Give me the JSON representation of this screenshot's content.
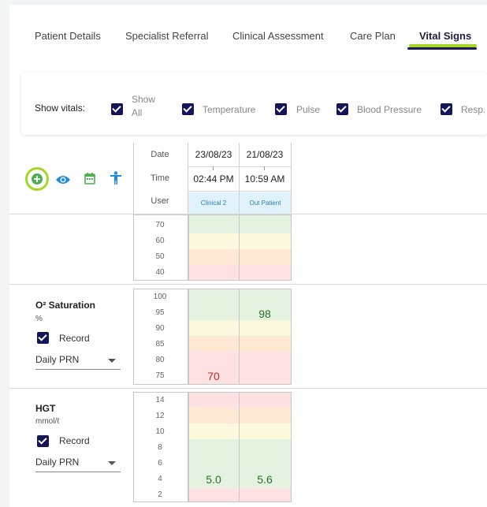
{
  "tabs": [
    {
      "label": "Patient Details"
    },
    {
      "label": "Specialist Referral"
    },
    {
      "label": "Clinical Assessment"
    },
    {
      "label": "Care Plan"
    },
    {
      "label": "Vital Signs",
      "active": true
    }
  ],
  "filter": {
    "label": "Show vitals:",
    "options": [
      {
        "label": "Show All",
        "checked": true
      },
      {
        "label": "Temperature",
        "checked": true
      },
      {
        "label": "Pulse",
        "checked": true
      },
      {
        "label": "Blood Pressure",
        "checked": true
      },
      {
        "label": "Resp.",
        "checked": true
      }
    ]
  },
  "toolbar": {
    "icons": [
      "add-icon",
      "eye-icon",
      "calendar-icon",
      "person-icon"
    ],
    "colors": {
      "add": "#4caf50",
      "eye": "#1e88e5",
      "calendar": "#4caf50",
      "person": "#1e88e5",
      "highlight": "#a6d823"
    }
  },
  "header": {
    "row_labels": {
      "date": "Date",
      "time": "Time",
      "user": "User"
    },
    "columns": [
      {
        "date": "23/08/23",
        "time": "02:44 PM",
        "user": "Clinical 2"
      },
      {
        "date": "21/08/23",
        "time": "10:59 AM",
        "user": "Out Patient"
      }
    ]
  },
  "partial_section": {
    "scale": [
      "70",
      "60",
      "50",
      "40"
    ]
  },
  "o2": {
    "title": "O² Saturation",
    "unit": "%",
    "record_label": "Record",
    "record_checked": true,
    "frequency": "Daily PRN",
    "scale": [
      "100",
      "95",
      "90",
      "85",
      "80",
      "75"
    ],
    "values": [
      "70",
      "98"
    ],
    "value_colors": [
      "#c62828",
      "#2e6b2e"
    ]
  },
  "hgt": {
    "title": "HGT",
    "unit": "mmol/ℓ",
    "record_label": "Record",
    "record_checked": true,
    "frequency": "Daily PRN",
    "scale": [
      "14",
      "12",
      "10",
      "8",
      "6",
      "4",
      "2"
    ],
    "values": [
      "5.0",
      "5.6"
    ],
    "value_colors": [
      "#2e6b2e",
      "#2e6b2e"
    ]
  }
}
